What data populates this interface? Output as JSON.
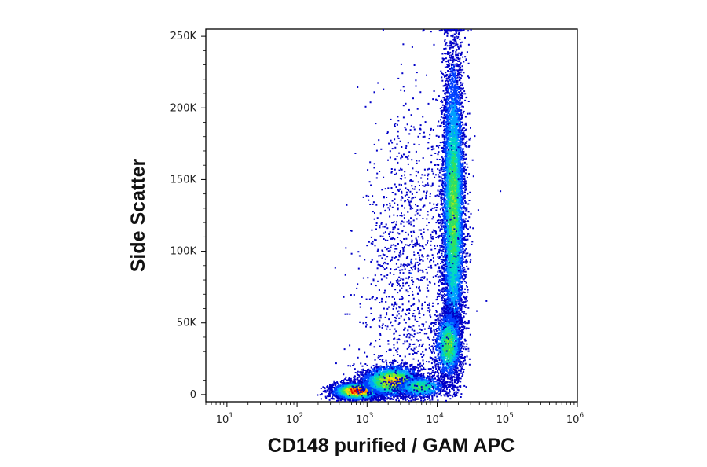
{
  "chart_data": {
    "type": "scatter",
    "subtype": "flow-cytometry density dot plot",
    "xlabel": "CD148 purified / GAM APC",
    "ylabel": "Side Scatter",
    "x_scale": "log",
    "xlim": [
      5,
      1000000
    ],
    "ylim": [
      -5000,
      255000
    ],
    "x_ticks": [
      {
        "value": 10,
        "base": "10",
        "exp": "1"
      },
      {
        "value": 100,
        "base": "10",
        "exp": "2"
      },
      {
        "value": 1000,
        "base": "10",
        "exp": "3"
      },
      {
        "value": 10000,
        "base": "10",
        "exp": "4"
      },
      {
        "value": 100000,
        "base": "10",
        "exp": "5"
      },
      {
        "value": 1000000,
        "base": "10",
        "exp": "6"
      }
    ],
    "y_ticks": [
      {
        "value": 0,
        "label": "0"
      },
      {
        "value": 50000,
        "label": "50K"
      },
      {
        "value": 100000,
        "label": "100K"
      },
      {
        "value": 150000,
        "label": "150K"
      },
      {
        "value": 200000,
        "label": "200K"
      },
      {
        "value": 250000,
        "label": "250K"
      }
    ],
    "grid": false,
    "colormap": [
      "#0000c8",
      "#0040ff",
      "#00a0ff",
      "#00d8c0",
      "#30e060",
      "#a0e820",
      "#ffe000",
      "#ff8000",
      "#e00000"
    ],
    "populations": [
      {
        "log10_x_center": 2.85,
        "y_center": 3000,
        "log10_x_sd": 0.17,
        "y_sd": 3000,
        "points": 3000,
        "peak_density": 1.0
      },
      {
        "log10_x_center": 3.35,
        "y_center": 10000,
        "log10_x_sd": 0.22,
        "y_sd": 5500,
        "points": 2600,
        "peak_density": 0.75
      },
      {
        "log10_x_center": 3.75,
        "y_center": 6000,
        "log10_x_sd": 0.18,
        "y_sd": 4000,
        "points": 900,
        "peak_density": 0.5
      },
      {
        "log10_x_center": 4.22,
        "y_center": 130000,
        "log10_x_sd": 0.08,
        "y_sd": 55000,
        "points": 7000,
        "peak_density": 0.55
      },
      {
        "log10_x_center": 4.15,
        "y_center": 35000,
        "log10_x_sd": 0.1,
        "y_sd": 12000,
        "points": 1500,
        "peak_density": 0.55
      },
      {
        "log10_x_center": 3.6,
        "y_center": 90000,
        "log10_x_sd": 0.35,
        "y_sd": 60000,
        "points": 1300,
        "peak_density": 0.1
      }
    ]
  }
}
